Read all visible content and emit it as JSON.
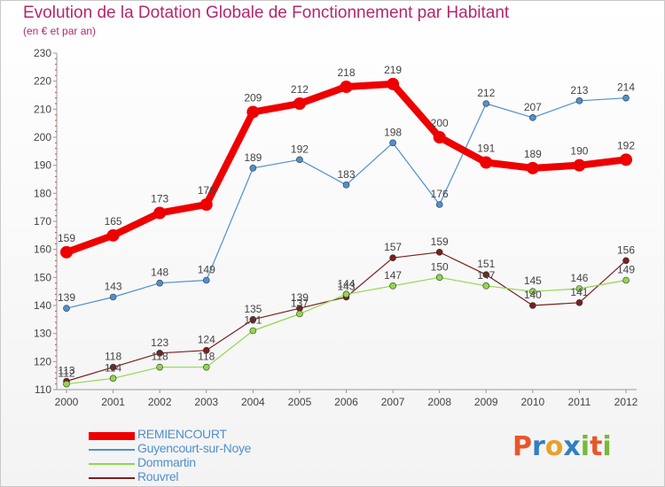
{
  "title": "Evolution de la Dotation Globale de Fonctionnement par Habitant",
  "subtitle": "(en € et par an)",
  "brand": {
    "letters": [
      "P",
      "r",
      "o",
      "x",
      "i",
      "t",
      "i"
    ],
    "colors": [
      "#e8562a",
      "#2f7fc4",
      "#e8a12a",
      "#2f7fc4",
      "#78b83a",
      "#e8562a",
      "#78b83a"
    ]
  },
  "chart_data": {
    "type": "line",
    "title": "Evolution de la Dotation Globale de Fonctionnement par Habitant",
    "subtitle": "(en € et par an)",
    "xlabel": "",
    "ylabel": "",
    "categories": [
      "2000",
      "2001",
      "2002",
      "2003",
      "2004",
      "2005",
      "2006",
      "2007",
      "2008",
      "2009",
      "2010",
      "2011",
      "2012"
    ],
    "ylim": [
      110,
      230
    ],
    "yticks": [
      110,
      120,
      130,
      140,
      150,
      160,
      170,
      180,
      190,
      200,
      210,
      220,
      230
    ],
    "grid": false,
    "legend_position": "bottom-left",
    "series": [
      {
        "name": "REMIENCOURT",
        "color": "#ee0000",
        "values": [
          159,
          165,
          173,
          176,
          209,
          212,
          218,
          219,
          200,
          191,
          189,
          190,
          192
        ]
      },
      {
        "name": "Guyencourt-sur-Noye",
        "color": "#4f90cf",
        "values": [
          139,
          143,
          148,
          149,
          189,
          192,
          183,
          198,
          176,
          212,
          207,
          213,
          214
        ]
      },
      {
        "name": "Dommartin",
        "color": "#8fd84a",
        "values": [
          112,
          114,
          118,
          118,
          131,
          137,
          144,
          147,
          150,
          147,
          145,
          146,
          149
        ]
      },
      {
        "name": "Rouvrel",
        "color": "#7a1f1f",
        "values": [
          113,
          118,
          123,
          124,
          135,
          139,
          143,
          157,
          159,
          151,
          140,
          141,
          156
        ]
      }
    ]
  }
}
